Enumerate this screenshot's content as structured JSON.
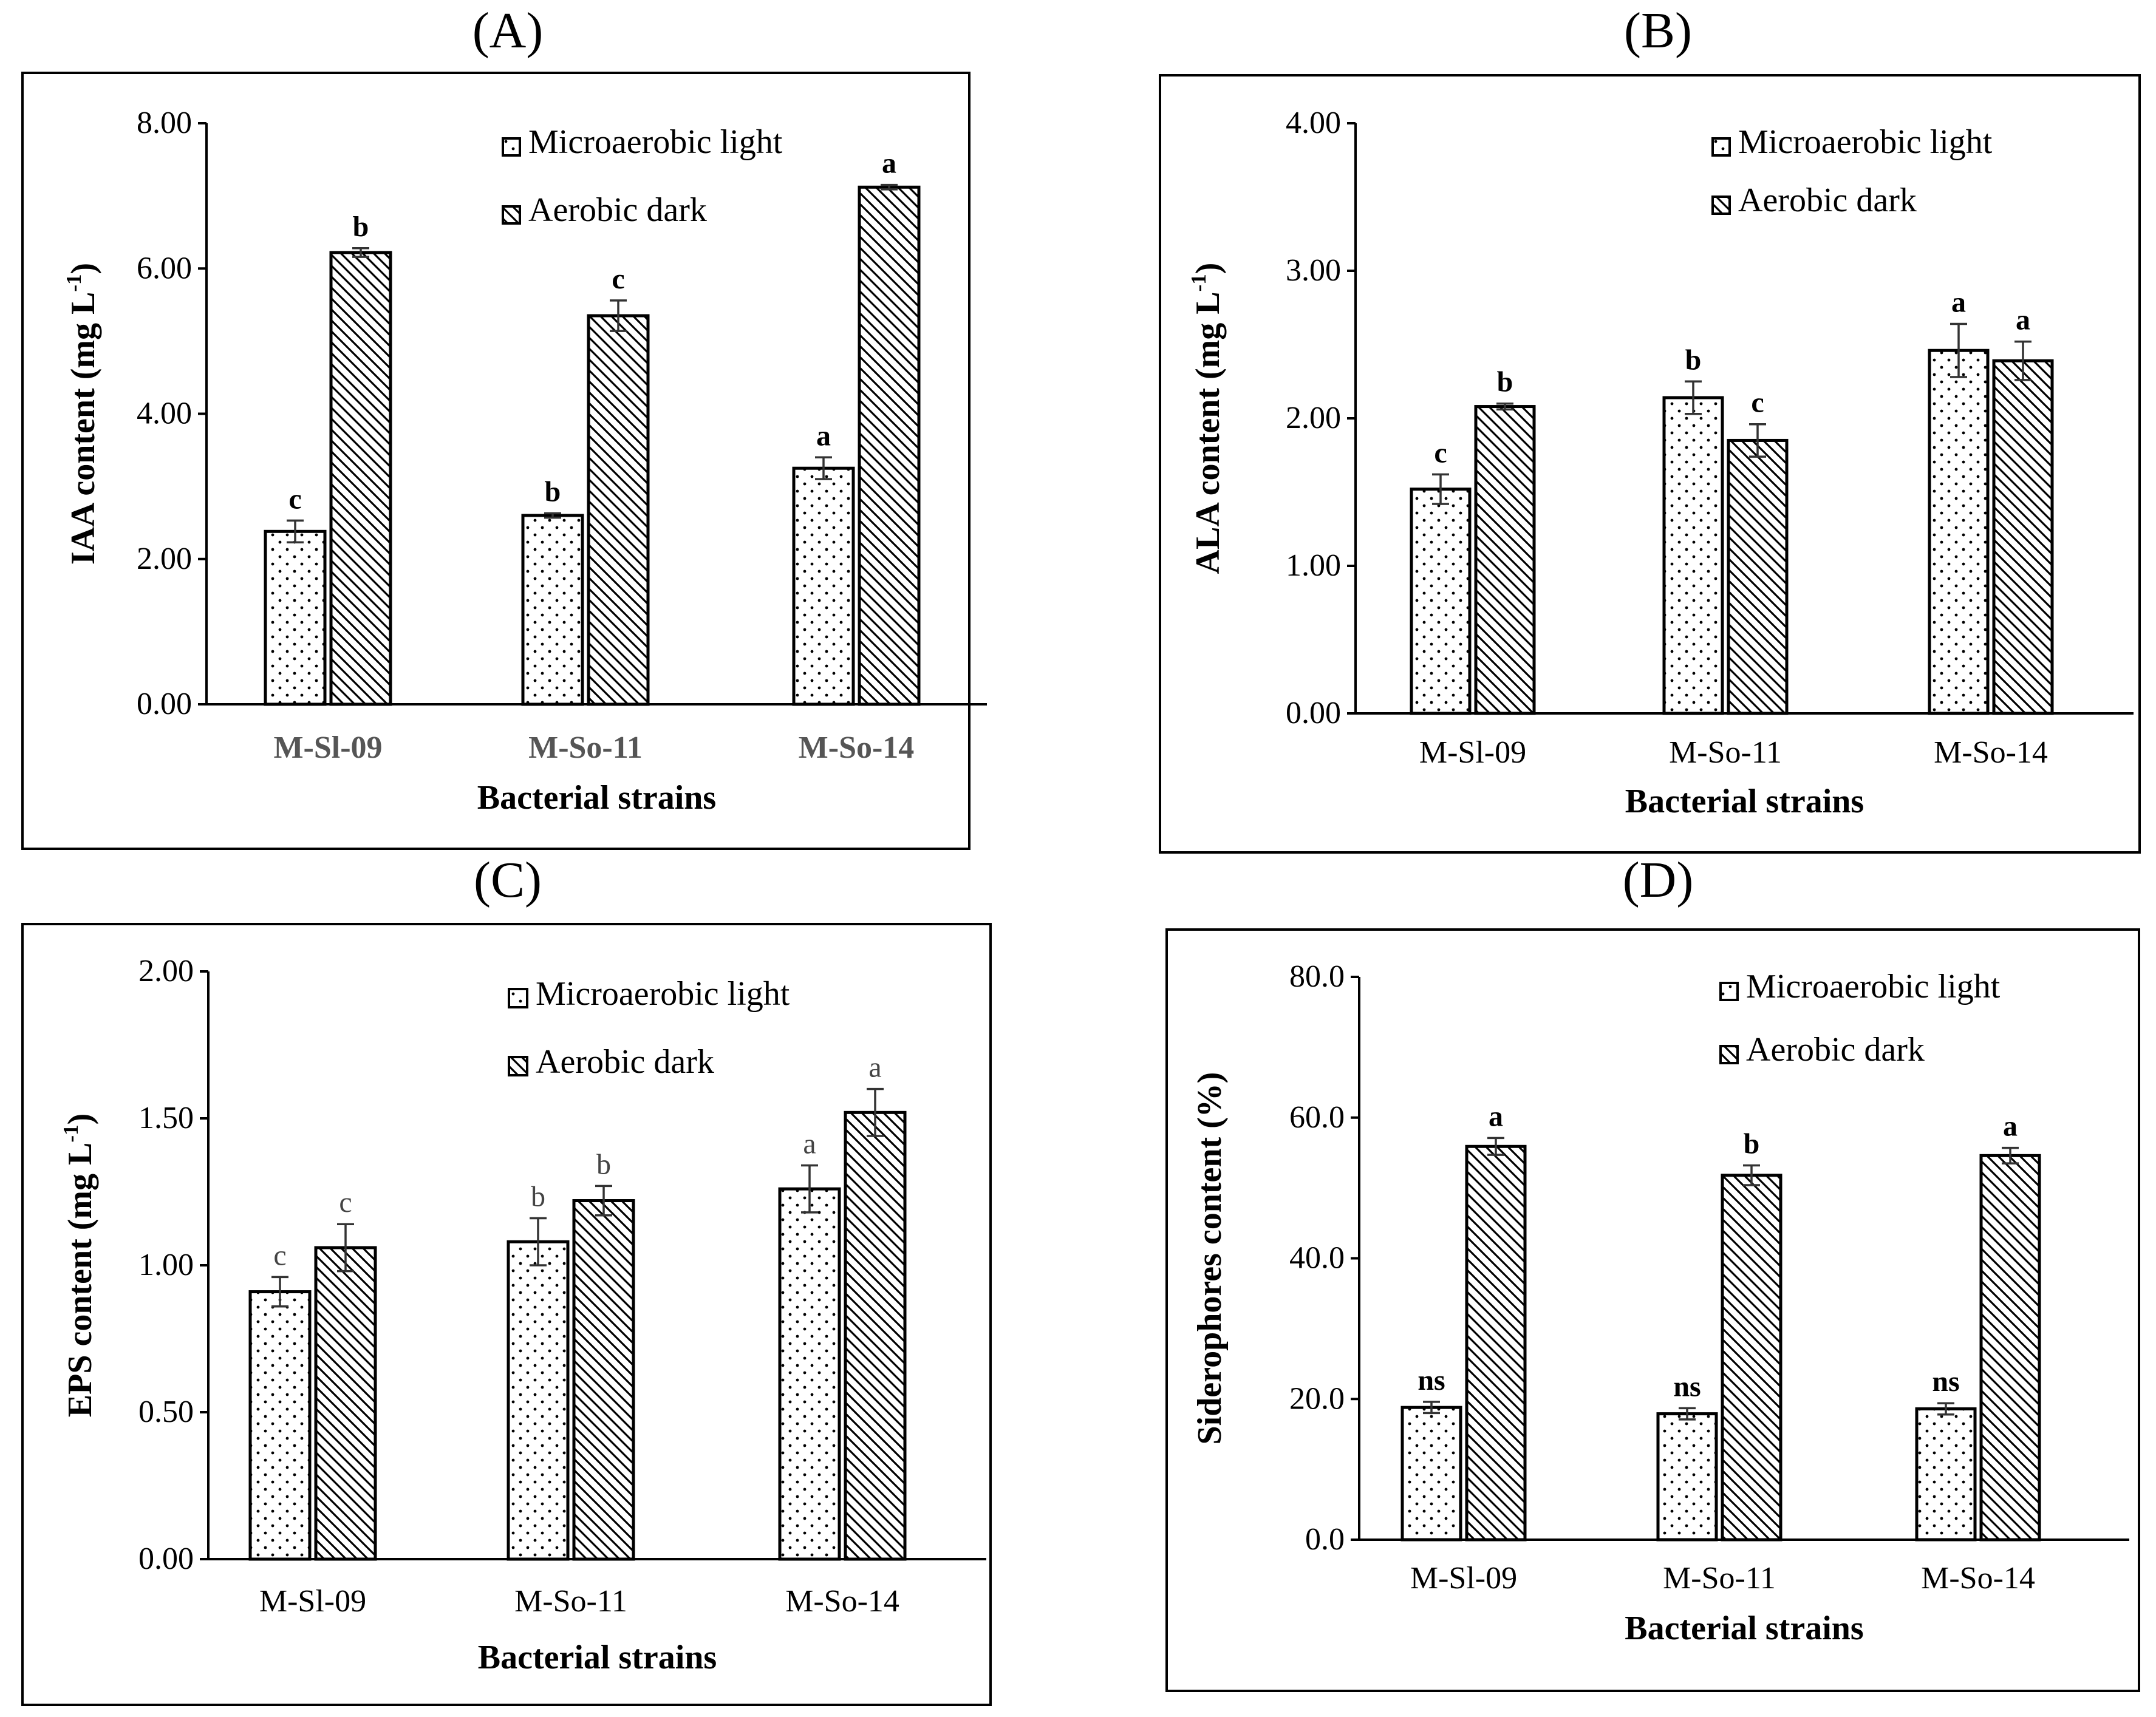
{
  "chart_data": [
    {
      "type": "bar",
      "panel_label": "(A)",
      "title": "",
      "xlabel": "Bacterial strains",
      "ylabel": "IAA content (mg L",
      "ylabel_sup": "-1",
      "ylabel_tail": ")",
      "ylim": [
        0,
        8
      ],
      "yticks": [
        "0.00",
        "2.00",
        "4.00",
        "6.00",
        "8.00"
      ],
      "categories": [
        "M-Sl-09",
        "M-So-11",
        "M-So-14"
      ],
      "legend_position": "top-right",
      "series": [
        {
          "name": "Microaerobic light",
          "values": [
            2.38,
            2.6,
            3.25
          ],
          "errors": [
            0.15,
            0.03,
            0.15
          ],
          "labels": [
            "c",
            "b",
            "a"
          ]
        },
        {
          "name": "Aerobic dark",
          "values": [
            6.22,
            5.35,
            7.12
          ],
          "errors": [
            0.06,
            0.21,
            0.03
          ],
          "labels": [
            "b",
            "c",
            "a"
          ]
        }
      ]
    },
    {
      "type": "bar",
      "panel_label": "(B)",
      "title": "",
      "xlabel": "Bacterial strains",
      "ylabel": "ALA content (mg L",
      "ylabel_sup": "-1",
      "ylabel_tail": ")",
      "ylim": [
        0,
        4
      ],
      "yticks": [
        "0.00",
        "1.00",
        "2.00",
        "3.00",
        "4.00"
      ],
      "categories": [
        "M-Sl-09",
        "M-So-11",
        "M-So-14"
      ],
      "legend_position": "top-right",
      "series": [
        {
          "name": "Microaerobic light",
          "values": [
            1.52,
            2.14,
            2.46
          ],
          "errors": [
            0.1,
            0.11,
            0.18
          ],
          "labels": [
            "c",
            "b",
            "a"
          ]
        },
        {
          "name": "Aerobic dark",
          "values": [
            2.08,
            1.85,
            2.39
          ],
          "errors": [
            0.02,
            0.11,
            0.13
          ],
          "labels": [
            "b",
            "c",
            "a"
          ]
        }
      ]
    },
    {
      "type": "bar",
      "panel_label": "(C)",
      "title": "",
      "xlabel": "Bacterial strains",
      "ylabel": "EPS content (mg L",
      "ylabel_sup": "-1",
      "ylabel_tail": ")",
      "ylim": [
        0,
        2
      ],
      "yticks": [
        "0.00",
        "0.50",
        "1.00",
        "1.50",
        "2.00"
      ],
      "categories": [
        "M-Sl-09",
        "M-So-11",
        "M-So-14"
      ],
      "legend_position": "top-right",
      "series": [
        {
          "name": "Microaerobic light",
          "values": [
            0.91,
            1.08,
            1.26
          ],
          "errors": [
            0.05,
            0.08,
            0.08
          ],
          "labels": [
            "c",
            "b",
            "a"
          ]
        },
        {
          "name": "Aerobic dark",
          "values": [
            1.06,
            1.22,
            1.52
          ],
          "errors": [
            0.08,
            0.05,
            0.08
          ],
          "labels": [
            "c",
            "b",
            "a"
          ]
        }
      ]
    },
    {
      "type": "bar",
      "panel_label": "(D)",
      "title": "",
      "xlabel": "Bacterial strains",
      "ylabel": "Siderophores content (%)",
      "ylabel_sup": "",
      "ylabel_tail": "",
      "ylim": [
        0,
        80
      ],
      "yticks": [
        "0.0",
        "20.0",
        "40.0",
        "60.0",
        "80.0"
      ],
      "categories": [
        "M-Sl-09",
        "M-So-11",
        "M-So-14"
      ],
      "legend_position": "top-right",
      "series": [
        {
          "name": "Microaerobic light",
          "values": [
            18.8,
            17.9,
            18.6
          ],
          "errors": [
            0.8,
            0.8,
            0.8
          ],
          "labels": [
            "ns",
            "ns",
            "ns"
          ]
        },
        {
          "name": "Aerobic dark",
          "values": [
            55.9,
            51.8,
            54.6
          ],
          "errors": [
            1.2,
            1.4,
            1.1
          ],
          "labels": [
            "a",
            "b",
            "a"
          ]
        }
      ]
    }
  ]
}
